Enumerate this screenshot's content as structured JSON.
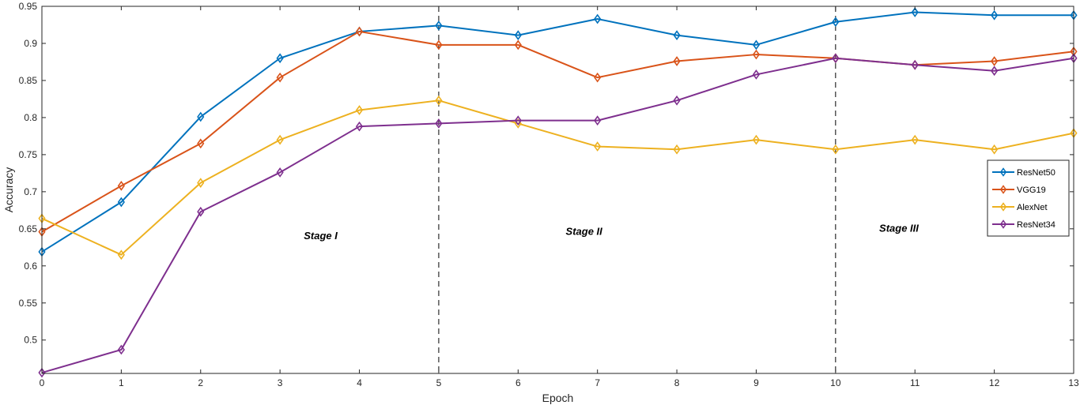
{
  "chart_data": {
    "type": "line",
    "xlabel": "Epoch",
    "ylabel": "Accuracy",
    "xlim": [
      0,
      13
    ],
    "ylim": [
      0.455,
      0.95
    ],
    "xticks": [
      "0",
      "1",
      "2",
      "3",
      "4",
      "5",
      "6",
      "7",
      "8",
      "9",
      "10",
      "11",
      "12",
      "13"
    ],
    "yticks": [
      "0.5",
      "0.55",
      "0.6",
      "0.65",
      "0.7",
      "0.75",
      "0.8",
      "0.85",
      "0.9",
      "0.95"
    ],
    "x": [
      0,
      1,
      2,
      3,
      4,
      5,
      6,
      7,
      8,
      9,
      10,
      11,
      12,
      13
    ],
    "series": [
      {
        "name": "ResNet50",
        "color": "#0072BD",
        "values": [
          0.619,
          0.686,
          0.801,
          0.88,
          0.916,
          0.924,
          0.911,
          0.933,
          0.911,
          0.898,
          0.929,
          0.942,
          0.938,
          0.938
        ]
      },
      {
        "name": "VGG19",
        "color": "#D95319",
        "values": [
          0.646,
          0.708,
          0.765,
          0.854,
          0.916,
          0.898,
          0.898,
          0.854,
          0.876,
          0.885,
          0.88,
          0.871,
          0.876,
          0.889
        ]
      },
      {
        "name": "AlexNet",
        "color": "#EDB120",
        "values": [
          0.664,
          0.615,
          0.712,
          0.77,
          0.81,
          0.823,
          0.792,
          0.761,
          0.757,
          0.77,
          0.757,
          0.77,
          0.757,
          0.779
        ]
      },
      {
        "name": "ResNet34",
        "color": "#7E2F8E",
        "values": [
          0.456,
          0.487,
          0.673,
          0.726,
          0.788,
          0.792,
          0.796,
          0.796,
          0.823,
          0.858,
          0.88,
          0.871,
          0.863,
          0.88
        ]
      }
    ],
    "vlines": [
      5,
      10
    ],
    "annotations": [
      {
        "text": "Stage I",
        "x": 3.3,
        "y": 0.636
      },
      {
        "text": "Stage II",
        "x": 6.6,
        "y": 0.642
      },
      {
        "text": "Stage III",
        "x": 10.55,
        "y": 0.646
      }
    ],
    "legend": "right",
    "grid": false
  }
}
